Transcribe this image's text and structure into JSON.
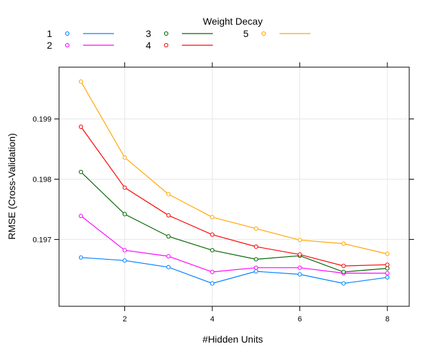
{
  "chart_data": {
    "type": "line",
    "xlabel": "#Hidden Units",
    "ylabel": "RMSE (Cross-Validation)",
    "xlim": [
      0.5,
      8.5
    ],
    "ylim": [
      0.19589,
      0.19986
    ],
    "xticks": [
      2,
      4,
      6,
      8
    ],
    "yticks": [
      0.197,
      0.198,
      0.199
    ],
    "xtick_labels": [
      "2",
      "4",
      "6",
      "8"
    ],
    "ytick_labels": [
      "0.197",
      "0.198",
      "0.199"
    ],
    "grid": true,
    "legend": {
      "title": "Weight Decay",
      "placement": "top"
    },
    "x": [
      1,
      2,
      3,
      4,
      5,
      6,
      7,
      8
    ],
    "series": [
      {
        "name": "1",
        "color": "#0080ff",
        "values": [
          0.1967,
          0.19665,
          0.19654,
          0.19627,
          0.19647,
          0.19642,
          0.19627,
          0.19637
        ]
      },
      {
        "name": "2",
        "color": "#ff00ff",
        "values": [
          0.19739,
          0.19682,
          0.19672,
          0.19646,
          0.19653,
          0.19653,
          0.19644,
          0.19644
        ]
      },
      {
        "name": "3",
        "color": "#006400",
        "values": [
          0.19812,
          0.19742,
          0.19705,
          0.19682,
          0.19667,
          0.19673,
          0.19646,
          0.19652
        ]
      },
      {
        "name": "4",
        "color": "#ff0000",
        "values": [
          0.19887,
          0.19786,
          0.1974,
          0.19708,
          0.19688,
          0.19675,
          0.19656,
          0.19658
        ]
      },
      {
        "name": "5",
        "color": "#ffa500",
        "values": [
          0.19962,
          0.19836,
          0.19775,
          0.19737,
          0.19718,
          0.19699,
          0.19693,
          0.19676
        ]
      }
    ]
  }
}
